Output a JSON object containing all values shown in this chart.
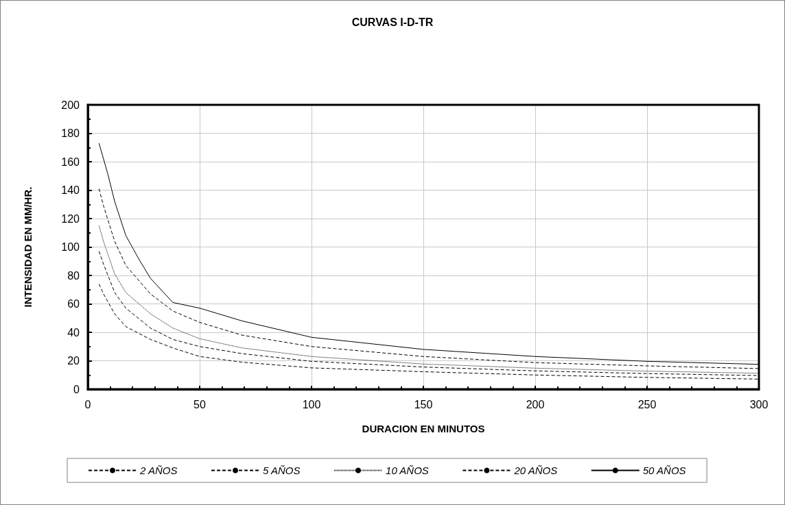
{
  "chart_data": {
    "type": "line",
    "title": "CURVAS I-D-TR",
    "xlabel": "DURACION EN MINUTOS",
    "ylabel": "INTENSIDAD EN MM/HR.",
    "xlim": [
      0,
      300
    ],
    "xticks": [
      0,
      50,
      100,
      150,
      200,
      250,
      300
    ],
    "ylim": [
      0,
      200
    ],
    "yticks": [
      0,
      20,
      40,
      60,
      80,
      100,
      120,
      140,
      160,
      180,
      200
    ],
    "grid": true,
    "legend": "bottom",
    "marker": "none",
    "series": [
      {
        "name": "2 AÑOS",
        "color": "#000000",
        "line_style": "dashed",
        "x": [
          5,
          7,
          12,
          17,
          28,
          38,
          50,
          69,
          100,
          150,
          200,
          250,
          300
        ],
        "values": [
          74,
          67,
          53,
          44,
          35,
          29,
          23,
          19,
          15,
          12.3,
          10,
          8.3,
          7.1
        ]
      },
      {
        "name": "5 AÑOS",
        "color": "#000000",
        "line_style": "dashed",
        "x": [
          5,
          7,
          12,
          17,
          28,
          38,
          50,
          69,
          100,
          150,
          200,
          250,
          300
        ],
        "values": [
          97,
          88,
          68,
          57,
          43,
          35,
          30,
          25,
          19.6,
          15.6,
          12.9,
          11,
          9.6
        ]
      },
      {
        "name": "10 AÑOS",
        "color": "#000000",
        "line_style": "dotted",
        "x": [
          5,
          7,
          12,
          17,
          28,
          38,
          50,
          69,
          100,
          150,
          200,
          250,
          300
        ],
        "values": [
          115,
          104,
          81,
          68,
          53,
          43,
          35.5,
          29,
          23,
          17.7,
          14.8,
          12.7,
          11.2
        ]
      },
      {
        "name": "20 AÑOS",
        "color": "#000000",
        "line_style": "dashed",
        "x": [
          5,
          7,
          12,
          17,
          28,
          38,
          50,
          69,
          100,
          150,
          200,
          250,
          300
        ],
        "values": [
          141,
          129,
          104,
          87,
          67,
          55,
          47,
          38,
          30,
          23,
          18.7,
          16.4,
          14.5
        ]
      },
      {
        "name": "50 AÑOS",
        "color": "#000000",
        "line_style": "solid",
        "x": [
          5,
          9,
          12,
          17,
          23,
          28,
          38,
          50,
          69,
          100,
          150,
          200,
          250,
          300
        ],
        "values": [
          173,
          151,
          132,
          108,
          91,
          78,
          61,
          57,
          48,
          36.5,
          28,
          23,
          19.6,
          17.5
        ]
      }
    ]
  }
}
